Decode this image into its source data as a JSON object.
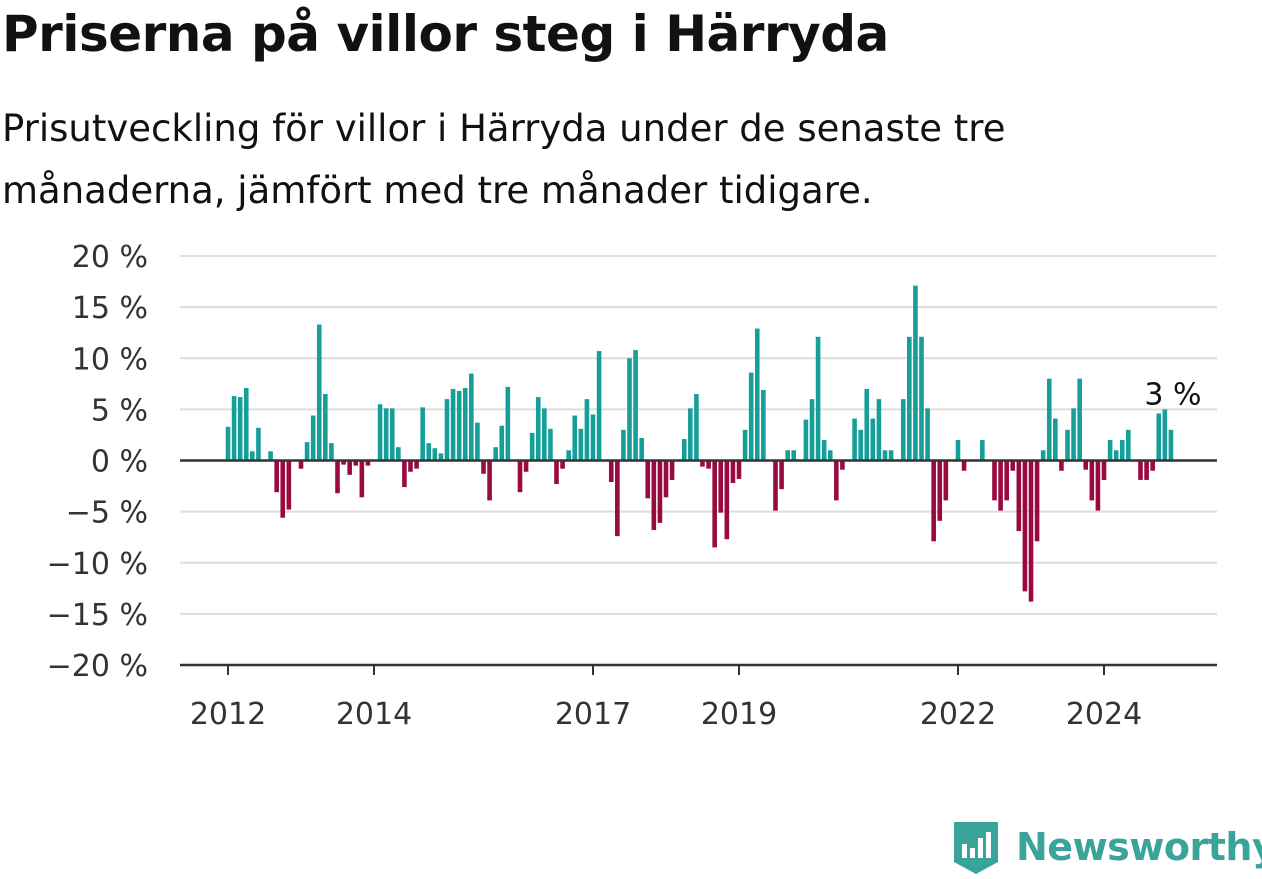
{
  "header": {
    "title": "Priserna på villor steg i Härryda",
    "subtitle": "Prisutveckling för villor i Härryda under de senaste tre månaderna, jämfört med tre månader tidigare."
  },
  "brand": {
    "name": "Newsworthy",
    "icon": "newsworthy-logo-icon",
    "color": "#3aa39a"
  },
  "colors": {
    "positive": "#169e99",
    "negative": "#990a40",
    "axis": "#333333",
    "grid": "#dddddd"
  },
  "chart_data": {
    "type": "bar",
    "title": "Priserna på villor steg i Härryda",
    "subtitle": "Prisutveckling för villor i Härryda under de senaste tre månaderna, jämfört med tre månader tidigare.",
    "ylim": [
      -20,
      20
    ],
    "y_ticks": [
      20,
      15,
      10,
      5,
      0,
      -5,
      -10,
      -15,
      -20
    ],
    "y_tick_labels": [
      "20 %",
      "15 %",
      "10 %",
      "5 %",
      "0 %",
      "−5 %",
      "−10 %",
      "−15 %",
      "−20 %"
    ],
    "x_ticks": [
      "2012",
      "2014",
      "2017",
      "2019",
      "2022",
      "2024"
    ],
    "start": "2012-01",
    "grid": true,
    "legend": "none",
    "annotation": {
      "text": "3 %",
      "value": 3
    },
    "values": [
      3.3,
      6.3,
      6.2,
      7.1,
      0.9,
      3.2,
      0,
      0.9,
      -3.1,
      -5.6,
      -4.8,
      0,
      -0.8,
      1.8,
      4.4,
      13.3,
      6.5,
      1.7,
      -3.2,
      -0.4,
      -1.4,
      -0.5,
      -3.6,
      -0.5,
      0,
      5.5,
      5.1,
      5.1,
      1.3,
      -2.6,
      -1.1,
      -0.8,
      5.2,
      1.7,
      1.2,
      0.7,
      6.0,
      7.0,
      6.8,
      7.1,
      8.5,
      3.7,
      -1.3,
      -3.9,
      1.3,
      3.4,
      7.2,
      0,
      -3.1,
      -1.1,
      2.7,
      6.2,
      5.1,
      3.1,
      -2.3,
      -0.8,
      1.0,
      4.4,
      3.1,
      6.0,
      4.5,
      10.7,
      0,
      -2.1,
      -7.4,
      3.0,
      10.0,
      10.8,
      2.2,
      -3.7,
      -6.8,
      -6.1,
      -3.6,
      -1.9,
      0,
      2.1,
      5.1,
      6.5,
      -0.6,
      -0.8,
      -8.5,
      -5.1,
      -7.7,
      -2.2,
      -1.8,
      3.0,
      8.6,
      12.9,
      6.9,
      0,
      -4.9,
      -2.8,
      1.0,
      1.0,
      0,
      4.0,
      6.0,
      12.1,
      2.0,
      1.0,
      -3.9,
      -0.9,
      0,
      4.1,
      3.0,
      7.0,
      4.1,
      6.0,
      1.0,
      1.0,
      0,
      6.0,
      12.1,
      17.1,
      12.1,
      5.1,
      -7.9,
      -5.9,
      -3.9,
      0,
      2.0,
      -1.0,
      0,
      0,
      2.0,
      0,
      -3.9,
      -4.9,
      -3.9,
      -1.0,
      -6.9,
      -12.8,
      -13.8,
      -7.9,
      1.0,
      8.0,
      4.1,
      -1.0,
      3.0,
      5.1,
      8.0,
      -0.9,
      -3.9,
      -4.9,
      -1.9,
      2.0,
      1.0,
      2.0,
      3.0,
      0,
      -1.9,
      -1.9,
      -1.0,
      4.6,
      5.0,
      3.0
    ]
  }
}
